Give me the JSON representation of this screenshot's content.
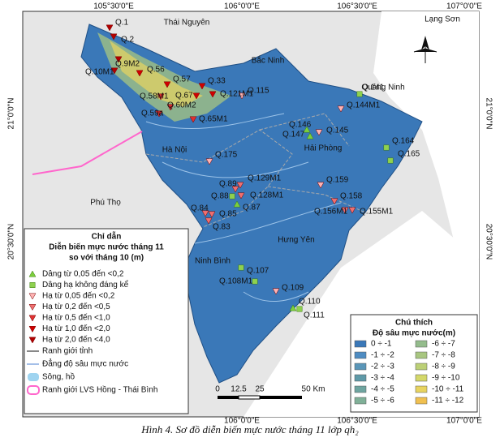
{
  "coords": {
    "top": [
      "105°30'0\"E",
      "106°0'0\"E",
      "106°30'0\"E",
      "107°0'0\"E"
    ],
    "bottom": [
      "106°0'0\"E",
      "106°30'0\"E",
      "107°0'0\"E"
    ],
    "left": [
      "21°0'0\"N",
      "20°30'0\"N"
    ],
    "right": [
      "21°0'0\"N",
      "20°30'0\"N"
    ]
  },
  "places": [
    "Thái Nguyên",
    "Lạng Sơn",
    "Bắc Ninh",
    "Quảng Ninh",
    "Hà Nội",
    "Hải Phòng",
    "Phú Thọ",
    "Hưng Yên",
    "Ninh Bình"
  ],
  "legend": {
    "title": "Chỉ dẫn",
    "subtitle": [
      "Diễn biến mực nước tháng 11",
      "so với tháng 10 (m)"
    ],
    "symbols": [
      {
        "label": "Dâng từ 0,05 đến <0,2",
        "wells": [
          "Q.87",
          "Q.147",
          "Q.146",
          "Q.110"
        ]
      },
      {
        "label": "Dâng hạ không đáng kể",
        "wells": [
          "Q.141",
          "Q.164",
          "Q.165",
          "Q.88",
          "Q.107",
          "Q.108M1",
          "Q.111"
        ]
      },
      {
        "label": "Hạ từ 0,05 đến <0,2",
        "wells": [
          "Q.115",
          "Q.175",
          "Q.159",
          "Q.109",
          "Q.145",
          "Q.144M1"
        ]
      },
      {
        "label": "Hạ từ 0,2 đến <0,5",
        "wells": [
          "Q.158",
          "Q.156M1",
          "Q.155M1",
          "Q.129M1",
          "Q.89",
          "Q.128M1",
          "Q.84",
          "Q.85",
          "Q.83"
        ]
      },
      {
        "label": "Hạ từ 0,5 đến <1,0",
        "wells": [
          "Q.65M1",
          "Q.59a",
          "Q.60M2",
          "Q.58M1"
        ]
      },
      {
        "label": "Hạ từ 1,0 đến <2,0",
        "wells": [
          "Q.56",
          "Q.57",
          "Q.67",
          "Q.121M1",
          "Q.33"
        ]
      },
      {
        "label": "Hạ từ 2,0 đến <4,0",
        "wells": [
          "Q.1",
          "Q.2",
          "Q.9M2",
          "Q.10M1"
        ]
      }
    ],
    "lines": [
      "Ranh giới tỉnh",
      "Đẳng độ sâu mực nước",
      "Sông, hồ",
      "Ranh giới LVS Hồng - Thái Bình"
    ]
  },
  "scale": [
    "0",
    "12.5",
    "25",
    "50 Km"
  ],
  "depth_legend": {
    "title": "Chú thích",
    "subtitle": "Độ sâu mực nước(m)",
    "classes": [
      "0 ÷ -1",
      "-1 ÷ -2",
      "-2 ÷ -3",
      "-3 ÷ -4",
      "-4 ÷ -5",
      "-5 ÷ -6",
      "-6 ÷ -7",
      "-7 ÷ -8",
      "-8 ÷ -9",
      "-9 ÷ -10",
      "-10 ÷ -11",
      "-11 ÷ -12"
    ]
  },
  "caption": "Hình 4.  Sơ đồ diễn biến mực nước tháng 11 lớp qh₂"
}
